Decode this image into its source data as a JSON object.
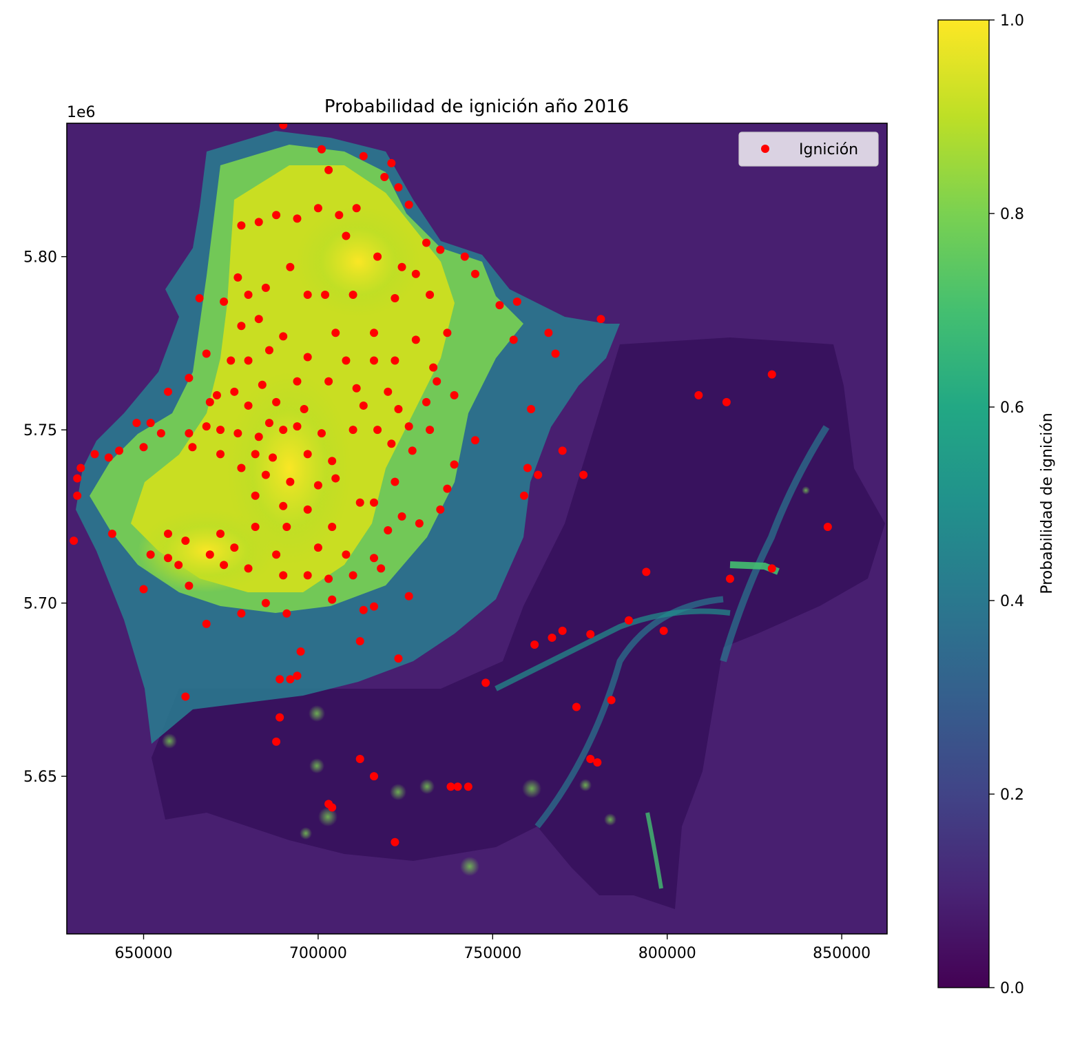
{
  "chart_data": {
    "type": "scatter",
    "title": "Probabilidad de ignición año 2016",
    "xlabel": "",
    "ylabel": "",
    "xlim": [
      628000,
      863000
    ],
    "ylim": [
      5604500,
      5838500
    ],
    "y_offset_label": "1e6",
    "xticks": [
      {
        "value": 650000,
        "label": "650000"
      },
      {
        "value": 700000,
        "label": "700000"
      },
      {
        "value": 750000,
        "label": "750000"
      },
      {
        "value": 800000,
        "label": "800000"
      },
      {
        "value": 850000,
        "label": "850000"
      }
    ],
    "yticks": [
      {
        "value": 5650000,
        "label": "5.65"
      },
      {
        "value": 5700000,
        "label": "5.70"
      },
      {
        "value": 5750000,
        "label": "5.75"
      },
      {
        "value": 5800000,
        "label": "5.80"
      }
    ],
    "background_raster": "probability of ignition raster (viridis colormap)",
    "colorbar": {
      "label": "Probabilidad de ignición",
      "colormap": "viridis",
      "range": [
        0.0,
        1.0
      ],
      "ticks": [
        {
          "value": 0.0,
          "label": "0.0"
        },
        {
          "value": 0.2,
          "label": "0.2"
        },
        {
          "value": 0.4,
          "label": "0.4"
        },
        {
          "value": 0.6,
          "label": "0.6"
        },
        {
          "value": 0.8,
          "label": "0.8"
        },
        {
          "value": 1.0,
          "label": "1.0"
        }
      ]
    },
    "legend": {
      "position": "upper right",
      "entries": [
        {
          "label": "Ignición",
          "color": "#ff0000"
        }
      ]
    },
    "series": [
      {
        "name": "Ignición",
        "color": "#ff0000",
        "points": [
          [
            690000,
            5838000
          ],
          [
            701000,
            5831000
          ],
          [
            713000,
            5829000
          ],
          [
            721000,
            5827000
          ],
          [
            703000,
            5825000
          ],
          [
            719000,
            5823000
          ],
          [
            723000,
            5820000
          ],
          [
            688000,
            5812000
          ],
          [
            700000,
            5814000
          ],
          [
            711000,
            5814000
          ],
          [
            726000,
            5815000
          ],
          [
            678000,
            5809000
          ],
          [
            683000,
            5810000
          ],
          [
            706000,
            5812000
          ],
          [
            694000,
            5811000
          ],
          [
            708000,
            5806000
          ],
          [
            731000,
            5804000
          ],
          [
            735000,
            5802000
          ],
          [
            742000,
            5800000
          ],
          [
            717000,
            5800000
          ],
          [
            724000,
            5797000
          ],
          [
            728000,
            5795000
          ],
          [
            745000,
            5795000
          ],
          [
            692000,
            5797000
          ],
          [
            677000,
            5794000
          ],
          [
            680000,
            5789000
          ],
          [
            685000,
            5791000
          ],
          [
            697000,
            5789000
          ],
          [
            702000,
            5789000
          ],
          [
            710000,
            5789000
          ],
          [
            722000,
            5788000
          ],
          [
            732000,
            5789000
          ],
          [
            752000,
            5786000
          ],
          [
            757000,
            5787000
          ],
          [
            666000,
            5788000
          ],
          [
            673000,
            5787000
          ],
          [
            678000,
            5780000
          ],
          [
            683000,
            5782000
          ],
          [
            690000,
            5777000
          ],
          [
            705000,
            5778000
          ],
          [
            716000,
            5778000
          ],
          [
            728000,
            5776000
          ],
          [
            737000,
            5778000
          ],
          [
            756000,
            5776000
          ],
          [
            766000,
            5778000
          ],
          [
            768000,
            5772000
          ],
          [
            781000,
            5782000
          ],
          [
            668000,
            5772000
          ],
          [
            675000,
            5770000
          ],
          [
            680000,
            5770000
          ],
          [
            686000,
            5773000
          ],
          [
            697000,
            5771000
          ],
          [
            708000,
            5770000
          ],
          [
            716000,
            5770000
          ],
          [
            722000,
            5770000
          ],
          [
            733000,
            5768000
          ],
          [
            734000,
            5764000
          ],
          [
            663000,
            5765000
          ],
          [
            671000,
            5760000
          ],
          [
            676000,
            5761000
          ],
          [
            684000,
            5763000
          ],
          [
            694000,
            5764000
          ],
          [
            703000,
            5764000
          ],
          [
            711000,
            5762000
          ],
          [
            720000,
            5761000
          ],
          [
            739000,
            5760000
          ],
          [
            809000,
            5760000
          ],
          [
            817000,
            5758000
          ],
          [
            830000,
            5766000
          ],
          [
            657000,
            5761000
          ],
          [
            669000,
            5758000
          ],
          [
            680000,
            5757000
          ],
          [
            688000,
            5758000
          ],
          [
            696000,
            5756000
          ],
          [
            713000,
            5757000
          ],
          [
            723000,
            5756000
          ],
          [
            731000,
            5758000
          ],
          [
            761000,
            5756000
          ],
          [
            648000,
            5752000
          ],
          [
            652000,
            5752000
          ],
          [
            655000,
            5749000
          ],
          [
            663000,
            5749000
          ],
          [
            668000,
            5751000
          ],
          [
            672000,
            5750000
          ],
          [
            677000,
            5749000
          ],
          [
            683000,
            5748000
          ],
          [
            686000,
            5752000
          ],
          [
            690000,
            5750000
          ],
          [
            694000,
            5751000
          ],
          [
            701000,
            5749000
          ],
          [
            710000,
            5750000
          ],
          [
            717000,
            5750000
          ],
          [
            726000,
            5751000
          ],
          [
            732000,
            5750000
          ],
          [
            745000,
            5747000
          ],
          [
            636000,
            5743000
          ],
          [
            640000,
            5742000
          ],
          [
            643000,
            5744000
          ],
          [
            650000,
            5745000
          ],
          [
            664000,
            5745000
          ],
          [
            672000,
            5743000
          ],
          [
            682000,
            5743000
          ],
          [
            687000,
            5742000
          ],
          [
            697000,
            5743000
          ],
          [
            704000,
            5741000
          ],
          [
            721000,
            5746000
          ],
          [
            727000,
            5744000
          ],
          [
            739000,
            5740000
          ],
          [
            760000,
            5739000
          ],
          [
            770000,
            5744000
          ],
          [
            632000,
            5739000
          ],
          [
            631000,
            5736000
          ],
          [
            678000,
            5739000
          ],
          [
            685000,
            5737000
          ],
          [
            692000,
            5735000
          ],
          [
            700000,
            5734000
          ],
          [
            705000,
            5736000
          ],
          [
            722000,
            5735000
          ],
          [
            737000,
            5733000
          ],
          [
            759000,
            5731000
          ],
          [
            763000,
            5737000
          ],
          [
            776000,
            5737000
          ],
          [
            631000,
            5731000
          ],
          [
            682000,
            5731000
          ],
          [
            690000,
            5728000
          ],
          [
            697000,
            5727000
          ],
          [
            712000,
            5729000
          ],
          [
            716000,
            5729000
          ],
          [
            724000,
            5725000
          ],
          [
            735000,
            5727000
          ],
          [
            630000,
            5718000
          ],
          [
            641000,
            5720000
          ],
          [
            657000,
            5720000
          ],
          [
            662000,
            5718000
          ],
          [
            672000,
            5720000
          ],
          [
            682000,
            5722000
          ],
          [
            691000,
            5722000
          ],
          [
            704000,
            5722000
          ],
          [
            720000,
            5721000
          ],
          [
            729000,
            5723000
          ],
          [
            652000,
            5714000
          ],
          [
            657000,
            5713000
          ],
          [
            660000,
            5711000
          ],
          [
            669000,
            5714000
          ],
          [
            676000,
            5716000
          ],
          [
            688000,
            5714000
          ],
          [
            700000,
            5716000
          ],
          [
            708000,
            5714000
          ],
          [
            716000,
            5713000
          ],
          [
            650000,
            5704000
          ],
          [
            663000,
            5705000
          ],
          [
            673000,
            5711000
          ],
          [
            680000,
            5710000
          ],
          [
            690000,
            5708000
          ],
          [
            697000,
            5708000
          ],
          [
            703000,
            5707000
          ],
          [
            710000,
            5708000
          ],
          [
            718000,
            5710000
          ],
          [
            794000,
            5709000
          ],
          [
            818000,
            5707000
          ],
          [
            830000,
            5710000
          ],
          [
            846000,
            5722000
          ],
          [
            668000,
            5694000
          ],
          [
            678000,
            5697000
          ],
          [
            685000,
            5700000
          ],
          [
            691000,
            5697000
          ],
          [
            704000,
            5701000
          ],
          [
            713000,
            5698000
          ],
          [
            716000,
            5699000
          ],
          [
            726000,
            5702000
          ],
          [
            695000,
            5686000
          ],
          [
            712000,
            5689000
          ],
          [
            723000,
            5684000
          ],
          [
            762000,
            5688000
          ],
          [
            767000,
            5690000
          ],
          [
            770000,
            5692000
          ],
          [
            778000,
            5691000
          ],
          [
            789000,
            5695000
          ],
          [
            799000,
            5692000
          ],
          [
            689000,
            5678000
          ],
          [
            692000,
            5678000
          ],
          [
            694000,
            5679000
          ],
          [
            748000,
            5677000
          ],
          [
            662000,
            5673000
          ],
          [
            689000,
            5667000
          ],
          [
            774000,
            5670000
          ],
          [
            784000,
            5672000
          ],
          [
            688000,
            5660000
          ],
          [
            712000,
            5655000
          ],
          [
            778000,
            5655000
          ],
          [
            780000,
            5654000
          ],
          [
            716000,
            5650000
          ],
          [
            738000,
            5647000
          ],
          [
            740000,
            5647000
          ],
          [
            743000,
            5647000
          ],
          [
            703000,
            5642000
          ],
          [
            704000,
            5641000
          ],
          [
            722000,
            5631000
          ]
        ]
      }
    ]
  }
}
